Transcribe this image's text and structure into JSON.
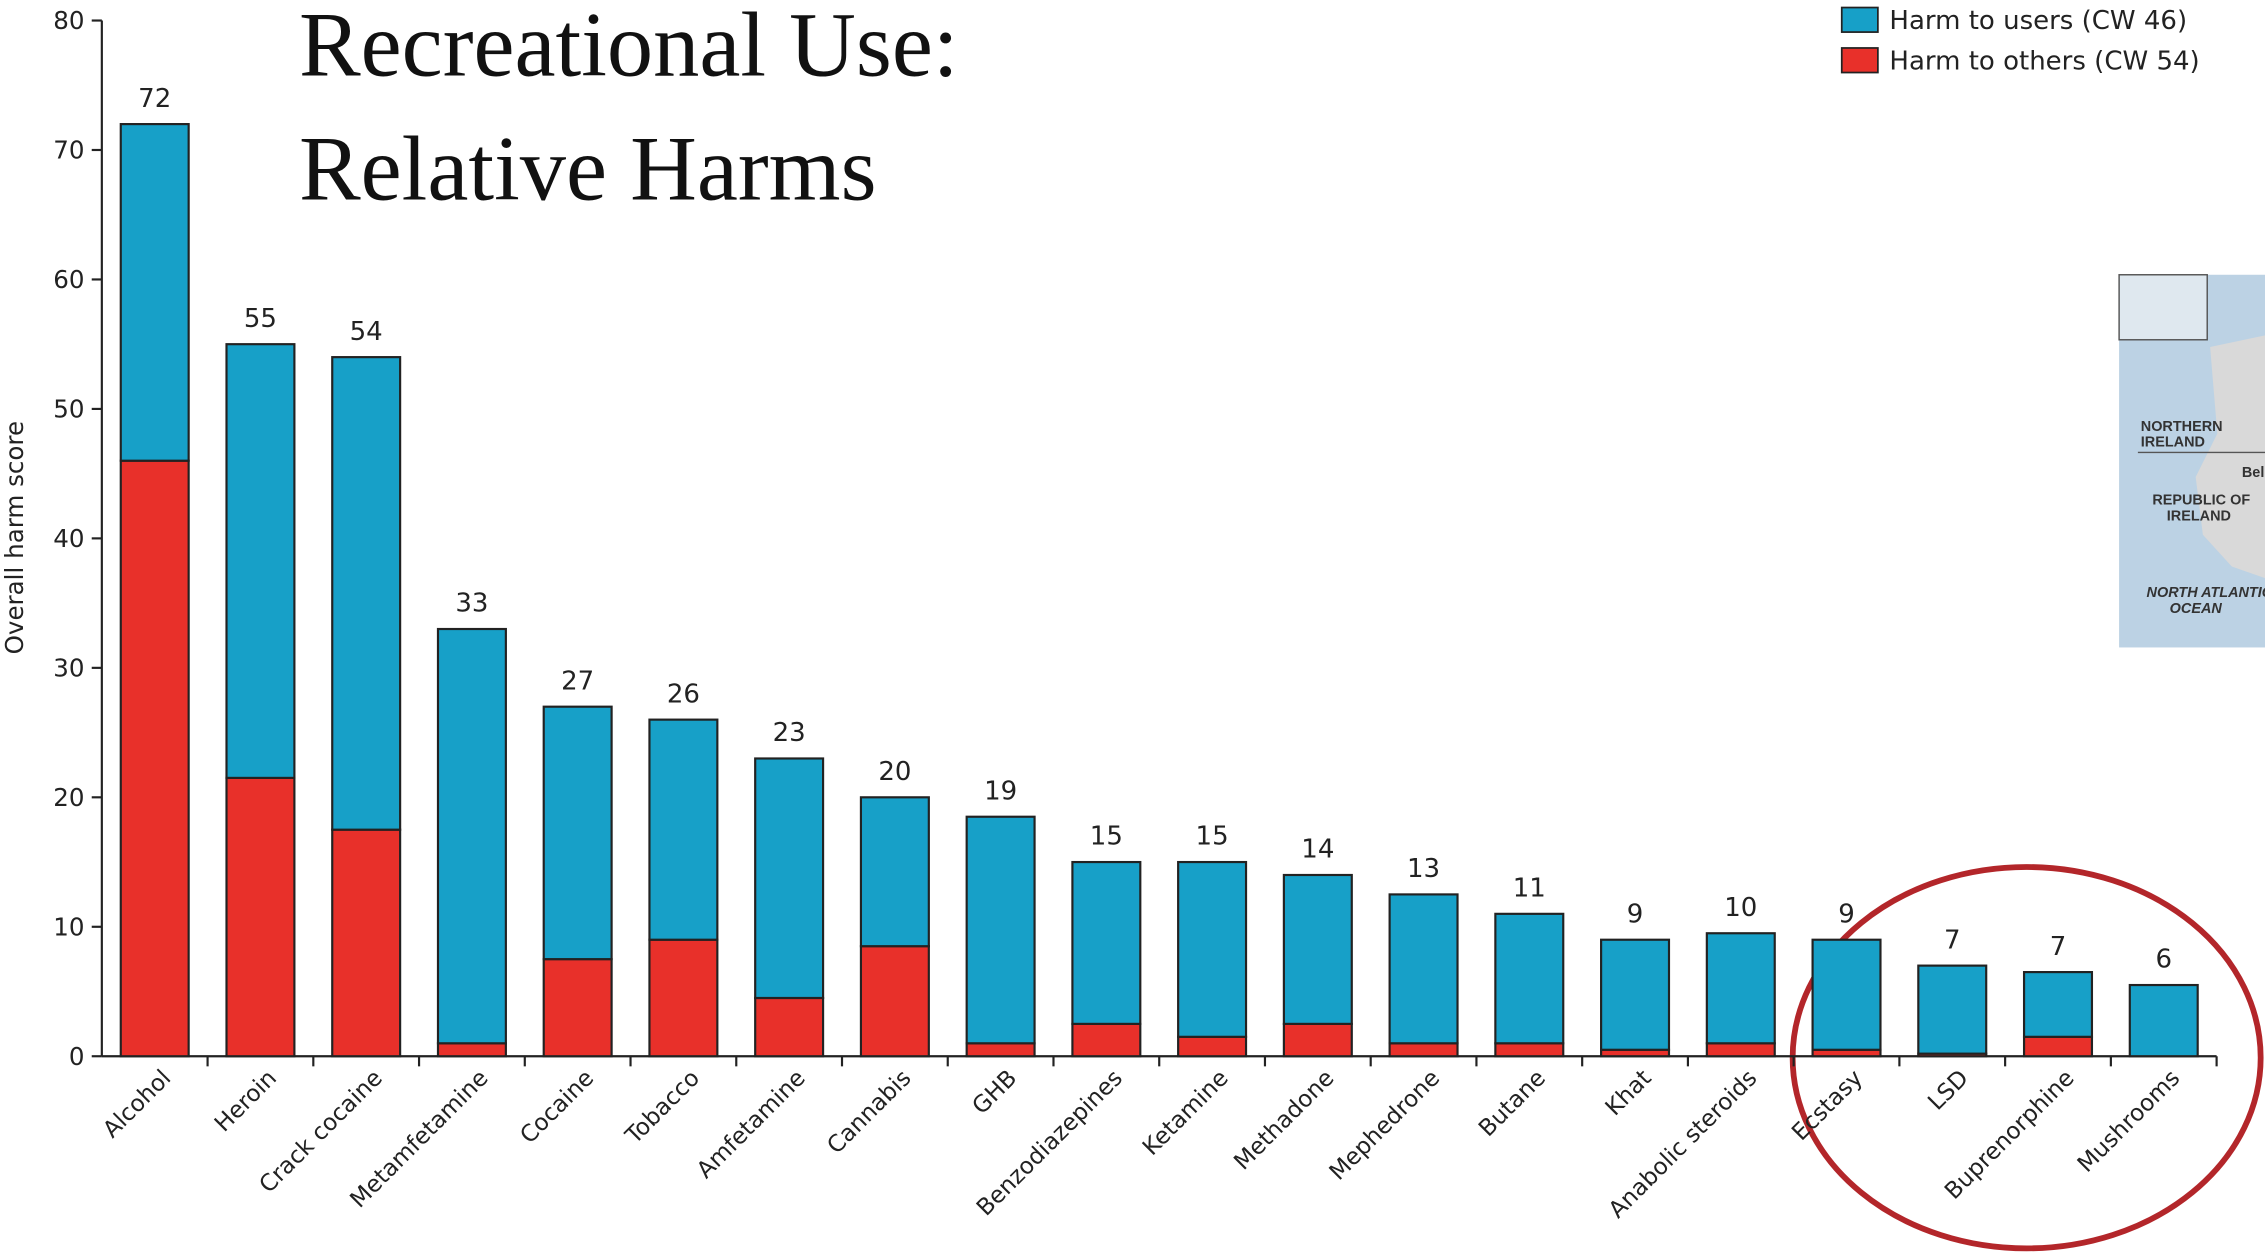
{
  "chart_data": {
    "type": "stacked-bar",
    "title": [
      "Recreational Use:",
      "Relative Harms"
    ],
    "y_label": "Overall harm score",
    "categories": [
      "Alcohol",
      "Heroin",
      "Crack cocaine",
      "Metamfetamine",
      "Cocaine",
      "Tobacco",
      "Amfetamine",
      "Cannabis",
      "GHB",
      "Benzodiazepines",
      "Ketamine",
      "Methadone",
      "Mephedrone",
      "Butane",
      "Khat",
      "Anabolic steroids",
      "Ecstasy",
      "LSD",
      "Buprenorphine",
      "Mushrooms"
    ],
    "series": [
      {
        "name": "Harm to users (CW 46)",
        "color": "#17a0c8",
        "values": [
          26,
          33.5,
          36.5,
          32,
          19.5,
          17,
          18.5,
          11.5,
          17.5,
          12.5,
          13.5,
          11.5,
          11.5,
          10,
          8.5,
          8.5,
          8.5,
          6.8,
          5,
          5.5
        ]
      },
      {
        "name": "Harm to others (CW 54)",
        "color": "#e8302a",
        "values": [
          46,
          21.5,
          17.5,
          1,
          7.5,
          9,
          4.5,
          8.5,
          1,
          2.5,
          1.5,
          2.5,
          1,
          1,
          0.5,
          1,
          0.5,
          0.2,
          1.5,
          0
        ]
      }
    ],
    "totals": [
      72,
      55,
      54,
      33,
      27,
      26,
      23,
      20,
      19,
      15,
      15,
      14,
      13,
      11,
      9,
      10,
      9,
      7,
      7,
      6
    ],
    "ylim": [
      0,
      80
    ],
    "yticks": [
      0,
      10,
      20,
      30,
      40,
      50,
      60,
      70,
      80
    ],
    "legend": "top-right"
  },
  "overlay": {
    "map_labels": [
      "NORTHERN IRELAND",
      "REPUBLIC OF IRELAND",
      "NORTH ATLANTIC OCEAN",
      "Bel"
    ]
  }
}
